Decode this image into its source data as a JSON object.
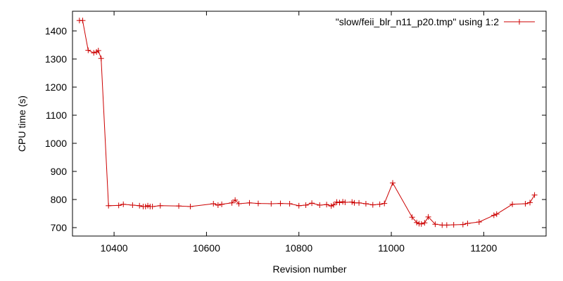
{
  "chart_data": {
    "type": "line",
    "title": "",
    "xlabel": "Revision number",
    "ylabel": "CPU time (s)",
    "xlim": [
      10310,
      11335
    ],
    "ylim": [
      670,
      1470
    ],
    "grid": false,
    "legend_position": "top-right",
    "x_ticks": [
      10400,
      10600,
      10800,
      11000,
      11200
    ],
    "y_ticks": [
      700,
      800,
      900,
      1000,
      1100,
      1200,
      1300,
      1400
    ],
    "series": [
      {
        "name": "\"slow/feii_blr_n11_p20.tmp\" using 1:2",
        "color": "#cc0000",
        "x": [
          10325,
          10332,
          10344,
          10356,
          10362,
          10366,
          10372,
          10388,
          10410,
          10420,
          10440,
          10455,
          10463,
          10468,
          10473,
          10478,
          10483,
          10500,
          10540,
          10565,
          10615,
          10625,
          10633,
          10655,
          10662,
          10670,
          10693,
          10712,
          10740,
          10760,
          10780,
          10800,
          10815,
          10828,
          10845,
          10860,
          10870,
          10875,
          10882,
          10888,
          10895,
          10900,
          10915,
          10920,
          10930,
          10945,
          10960,
          10975,
          10985,
          11003,
          11045,
          11055,
          11060,
          11065,
          11072,
          11080,
          11095,
          11110,
          11120,
          11135,
          11155,
          11165,
          11190,
          11222,
          11228,
          11262,
          11290,
          11300,
          11310
        ],
        "y": [
          1437,
          1437,
          1331,
          1322,
          1325,
          1330,
          1302,
          778,
          779,
          783,
          780,
          778,
          775,
          775,
          778,
          775,
          775,
          778,
          777,
          775,
          785,
          780,
          783,
          788,
          798,
          785,
          788,
          786,
          785,
          786,
          785,
          778,
          780,
          787,
          780,
          782,
          777,
          781,
          791,
          789,
          792,
          790,
          791,
          788,
          788,
          785,
          781,
          783,
          786,
          859,
          737,
          718,
          714,
          713,
          717,
          738,
          712,
          709,
          709,
          710,
          711,
          715,
          720,
          744,
          748,
          783,
          785,
          789,
          816
        ]
      }
    ]
  }
}
